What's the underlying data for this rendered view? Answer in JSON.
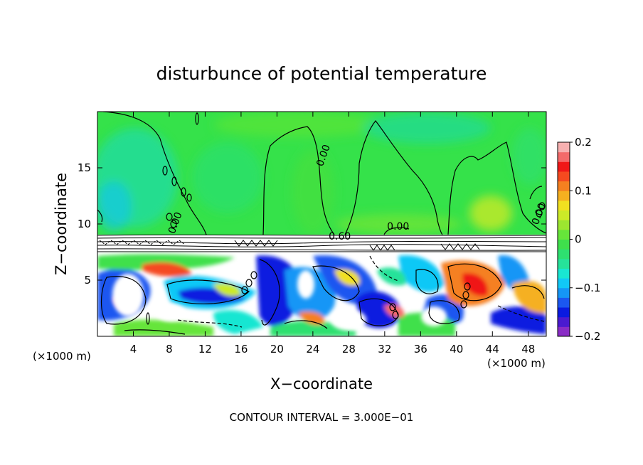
{
  "chart_data": {
    "type": "heatmap",
    "title": "disturbunce of potential temperature",
    "xlabel": "X−coordinate",
    "ylabel": "Z−coordinate",
    "x_unit_left": "(×1000 m)",
    "x_unit_right": "(×1000 m)",
    "xlim": [
      0,
      50
    ],
    "ylim": [
      0,
      20
    ],
    "x_ticks": [
      "4",
      "8",
      "12",
      "16",
      "20",
      "24",
      "28",
      "32",
      "36",
      "40",
      "44",
      "48"
    ],
    "x_tick_values": [
      4,
      8,
      12,
      16,
      20,
      24,
      28,
      32,
      36,
      40,
      44,
      48
    ],
    "y_ticks": [
      "5",
      "10",
      "15"
    ],
    "y_tick_values": [
      5,
      10,
      15
    ],
    "contour_labels": [
      {
        "text": "0.60",
        "x": 27,
        "z": 8.6
      },
      {
        "text": "0.00",
        "x": 25.5,
        "z": 16
      },
      {
        "text": "0.00",
        "x": 33.5,
        "z": 9.5
      },
      {
        "text": "0.00",
        "x": 9,
        "z": 10
      },
      {
        "text": "0.00",
        "x": 49.5,
        "z": 10.8
      }
    ],
    "colorbar": {
      "range": [
        -0.2,
        0.2
      ],
      "tick_labels": [
        "0.2",
        "0.1",
        "0",
        "−0.1",
        "−0.2"
      ],
      "tick_values": [
        0.2,
        0.1,
        0,
        -0.1,
        -0.2
      ],
      "colors": [
        "#8a2cc6",
        "#4a1ad0",
        "#0a1ae0",
        "#1b57f0",
        "#1596f6",
        "#11c8f6",
        "#19e6d2",
        "#26e29a",
        "#2ee070",
        "#3fe04c",
        "#66e53a",
        "#9ce630",
        "#ccea28",
        "#f0e020",
        "#f5b020",
        "#f58020",
        "#f54a20",
        "#f01818",
        "#f46a6a",
        "#f7b0b0"
      ]
    },
    "footer": "CONTOUR INTERVAL = 3.000E−01"
  }
}
